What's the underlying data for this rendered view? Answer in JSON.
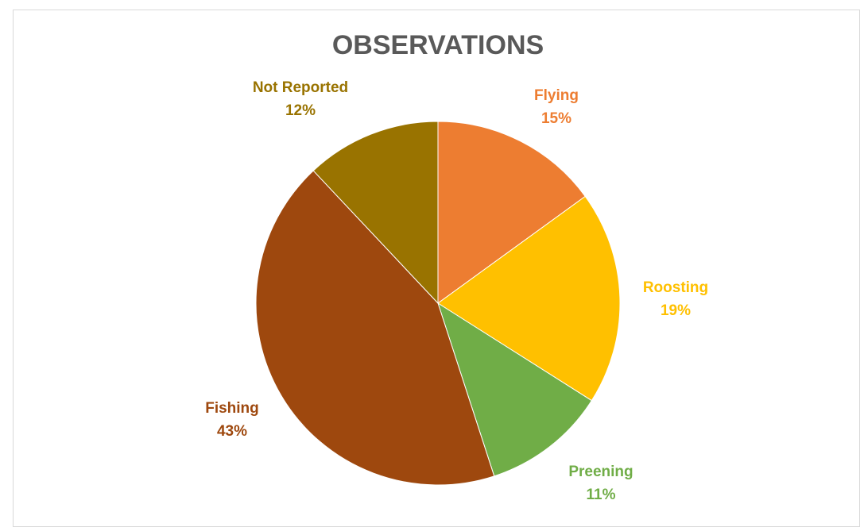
{
  "chart_data": {
    "type": "pie",
    "title": "OBSERVATIONS",
    "start_angle_deg": 0,
    "direction": "clockwise",
    "slices": [
      {
        "label": "Flying",
        "value": 15,
        "value_text": "15%",
        "color": "#ED7D31"
      },
      {
        "label": "Roosting",
        "value": 19,
        "value_text": "19%",
        "color": "#FFC000"
      },
      {
        "label": "Preening",
        "value": 11,
        "value_text": "11%",
        "color": "#70AD47"
      },
      {
        "label": "Fishing",
        "value": 43,
        "value_text": "43%",
        "color": "#9E480E"
      },
      {
        "label": "Not Reported",
        "value": 12,
        "value_text": "12%",
        "color": "#997300"
      }
    ]
  }
}
